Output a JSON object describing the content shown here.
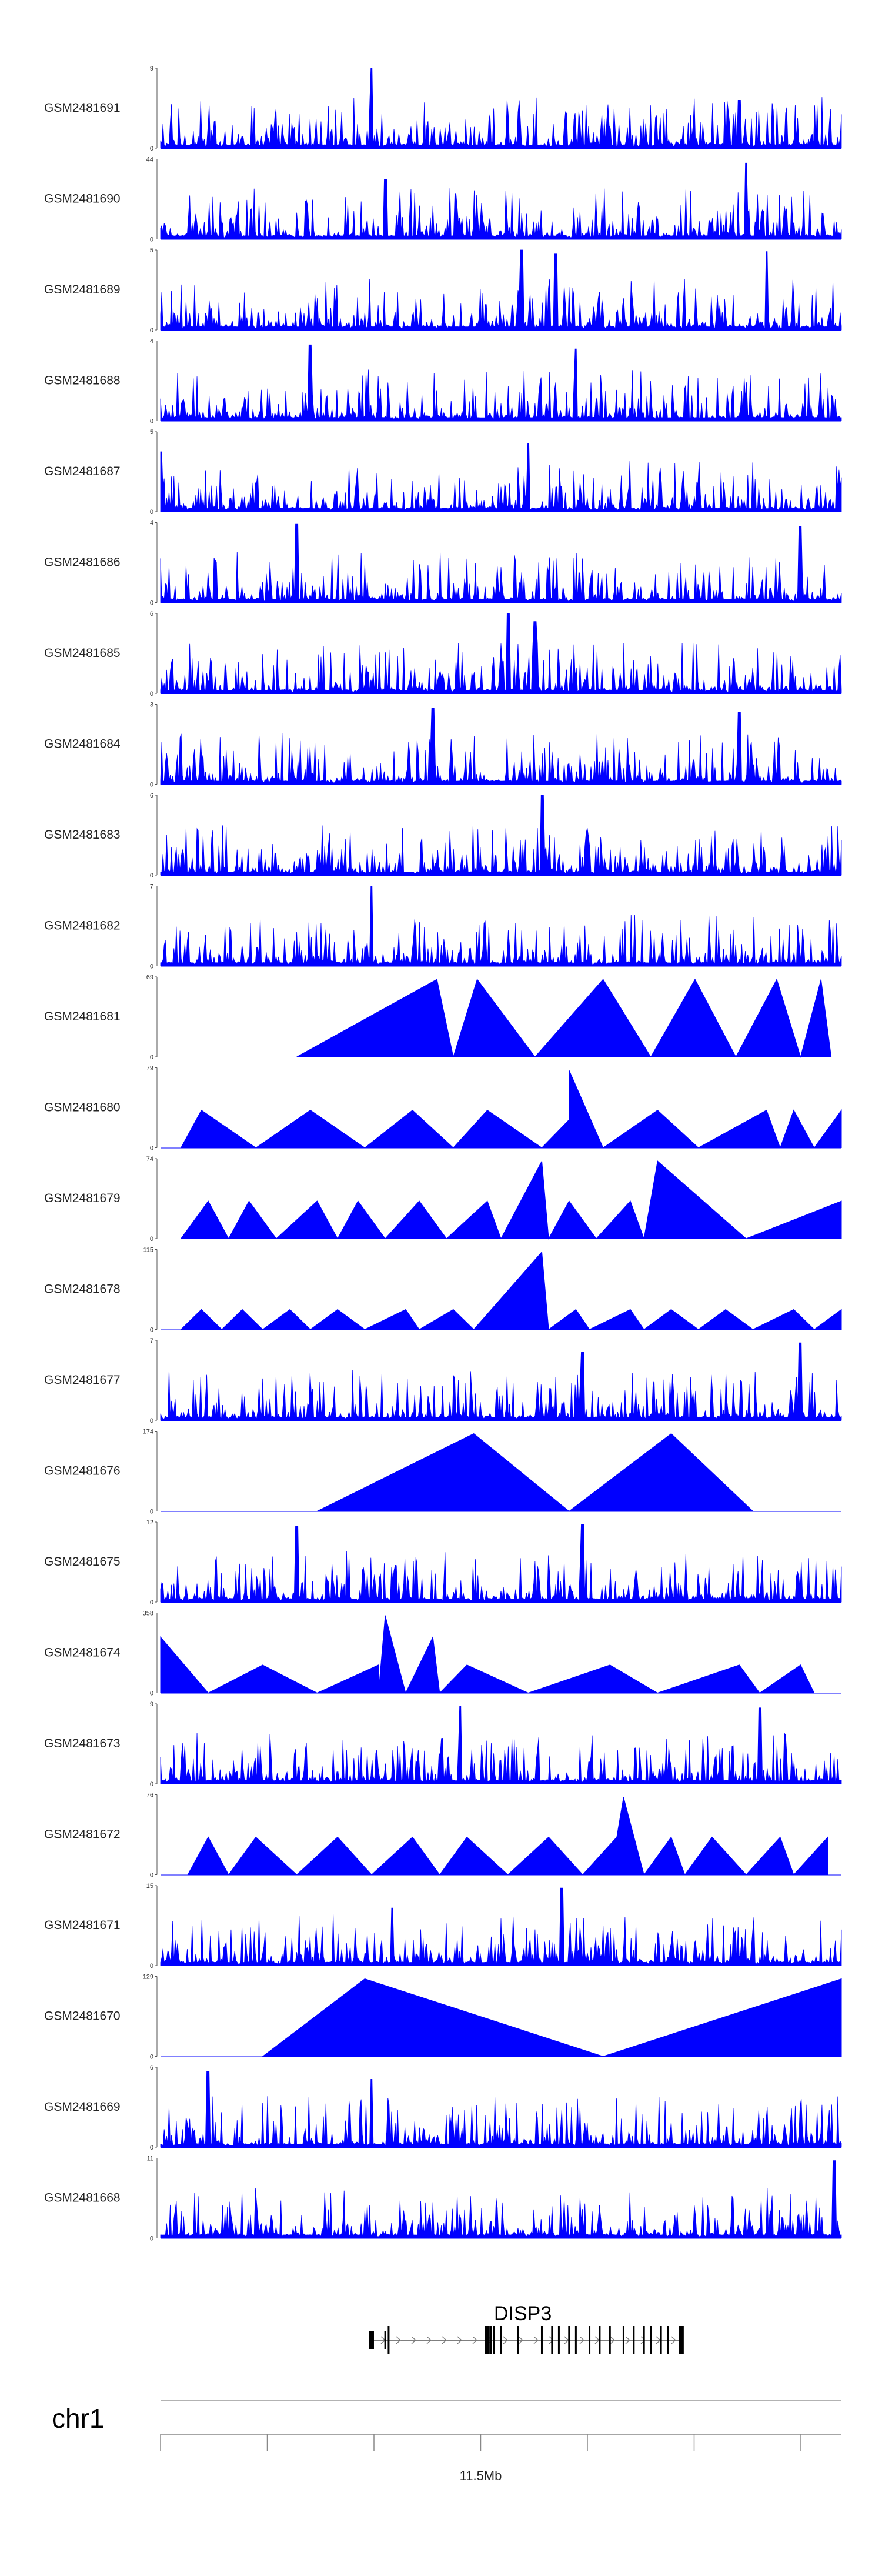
{
  "chart_data": {
    "type": "area",
    "title": "",
    "xlabel": "",
    "ylabel": "",
    "x_region_mb": [
      11.33,
      11.63
    ],
    "series_color": "#0000ff",
    "tracks": [
      {
        "name": "GSM2481691",
        "ymax": "9",
        "ymin": "0",
        "style": "dense",
        "peaks": [
          [
            0.31,
            1.0
          ],
          [
            0.85,
            0.6
          ]
        ]
      },
      {
        "name": "GSM2481690",
        "ymax": "44",
        "ymin": "0",
        "style": "triangles",
        "peaks": [
          [
            0.33,
            0.75
          ],
          [
            0.86,
            0.95
          ]
        ]
      },
      {
        "name": "GSM2481689",
        "ymax": "5",
        "ymin": "0",
        "style": "dense",
        "peaks": [
          [
            0.53,
            1.0
          ],
          [
            0.58,
            0.95
          ],
          [
            0.89,
            0.98
          ]
        ]
      },
      {
        "name": "GSM2481688",
        "ymax": "4",
        "ymin": "0",
        "style": "dense",
        "peaks": [
          [
            0.22,
            0.95
          ],
          [
            0.61,
            0.9
          ]
        ]
      },
      {
        "name": "GSM2481687",
        "ymax": "5",
        "ymin": "0",
        "style": "dense",
        "peaks": [
          [
            0.0,
            0.75
          ],
          [
            0.54,
            0.85
          ]
        ]
      },
      {
        "name": "GSM2481686",
        "ymax": "4",
        "ymin": "0",
        "style": "dense",
        "peaks": [
          [
            0.2,
            0.98
          ],
          [
            0.94,
            0.95
          ]
        ]
      },
      {
        "name": "GSM2481685",
        "ymax": "6",
        "ymin": "0",
        "style": "dense",
        "peaks": [
          [
            0.51,
            1.0
          ],
          [
            0.55,
            0.9
          ]
        ]
      },
      {
        "name": "GSM2481684",
        "ymax": "3",
        "ymin": "0",
        "style": "dense",
        "peaks": [
          [
            0.4,
            0.95
          ],
          [
            0.85,
            0.9
          ]
        ]
      },
      {
        "name": "GSM2481683",
        "ymax": "6",
        "ymin": "0",
        "style": "dense",
        "peaks": [
          [
            0.56,
            1.0
          ]
        ]
      },
      {
        "name": "GSM2481682",
        "ymax": "7",
        "ymin": "0",
        "style": "dense",
        "peaks": [
          [
            0.31,
            1.0
          ]
        ]
      },
      {
        "name": "GSM2481681",
        "ymax": "69",
        "ymin": "0",
        "style": "big",
        "peaks": [
          [
            0.2,
            0.0
          ],
          [
            0.406,
            0.97
          ],
          [
            0.43,
            0.0
          ],
          [
            0.465,
            0.97
          ],
          [
            0.55,
            0.0
          ],
          [
            0.65,
            0.97
          ],
          [
            0.72,
            0.0
          ],
          [
            0.785,
            0.97
          ],
          [
            0.845,
            0.0
          ],
          [
            0.905,
            0.97
          ],
          [
            0.94,
            0.0
          ],
          [
            0.97,
            0.97
          ],
          [
            0.985,
            0.0
          ]
        ]
      },
      {
        "name": "GSM2481680",
        "ymax": "79",
        "ymin": "0",
        "style": "big",
        "peaks": [
          [
            0.03,
            0.0
          ],
          [
            0.06,
            0.47
          ],
          [
            0.14,
            0.0
          ],
          [
            0.22,
            0.47
          ],
          [
            0.3,
            0.0
          ],
          [
            0.37,
            0.47
          ],
          [
            0.43,
            0.0
          ],
          [
            0.48,
            0.47
          ],
          [
            0.56,
            0.0
          ],
          [
            0.6,
            0.35
          ],
          [
            0.6,
            0.97
          ],
          [
            0.65,
            0.0
          ],
          [
            0.73,
            0.47
          ],
          [
            0.79,
            0.0
          ],
          [
            0.89,
            0.47
          ],
          [
            0.91,
            0.0
          ],
          [
            0.93,
            0.47
          ],
          [
            0.96,
            0.0
          ],
          [
            1.0,
            0.47
          ]
        ]
      },
      {
        "name": "GSM2481679",
        "ymax": "74",
        "ymin": "0",
        "style": "big",
        "peaks": [
          [
            0.03,
            0.0
          ],
          [
            0.07,
            0.47
          ],
          [
            0.1,
            0.0
          ],
          [
            0.13,
            0.47
          ],
          [
            0.17,
            0.0
          ],
          [
            0.23,
            0.47
          ],
          [
            0.26,
            0.0
          ],
          [
            0.29,
            0.47
          ],
          [
            0.33,
            0.0
          ],
          [
            0.38,
            0.47
          ],
          [
            0.42,
            0.0
          ],
          [
            0.48,
            0.47
          ],
          [
            0.5,
            0.0
          ],
          [
            0.56,
            0.97
          ],
          [
            0.57,
            0.0
          ],
          [
            0.6,
            0.47
          ],
          [
            0.64,
            0.0
          ],
          [
            0.69,
            0.47
          ],
          [
            0.71,
            0.0
          ],
          [
            0.73,
            0.97
          ],
          [
            0.86,
            0.0
          ],
          [
            1.0,
            0.47
          ]
        ]
      },
      {
        "name": "GSM2481678",
        "ymax": "115",
        "ymin": "0",
        "style": "big",
        "peaks": [
          [
            0.03,
            0.0
          ],
          [
            0.06,
            0.25
          ],
          [
            0.09,
            0.0
          ],
          [
            0.12,
            0.25
          ],
          [
            0.15,
            0.0
          ],
          [
            0.19,
            0.25
          ],
          [
            0.22,
            0.0
          ],
          [
            0.26,
            0.25
          ],
          [
            0.3,
            0.0
          ],
          [
            0.36,
            0.25
          ],
          [
            0.38,
            0.0
          ],
          [
            0.43,
            0.25
          ],
          [
            0.46,
            0.0
          ],
          [
            0.56,
            0.97
          ],
          [
            0.57,
            0.0
          ],
          [
            0.61,
            0.25
          ],
          [
            0.63,
            0.0
          ],
          [
            0.69,
            0.25
          ],
          [
            0.71,
            0.0
          ],
          [
            0.75,
            0.25
          ],
          [
            0.79,
            0.0
          ],
          [
            0.83,
            0.25
          ],
          [
            0.87,
            0.0
          ],
          [
            0.93,
            0.25
          ],
          [
            0.96,
            0.0
          ],
          [
            1.0,
            0.25
          ]
        ]
      },
      {
        "name": "GSM2481677",
        "ymax": "7",
        "ymin": "0",
        "style": "dense",
        "peaks": [
          [
            0.62,
            0.85
          ],
          [
            0.94,
            0.97
          ]
        ]
      },
      {
        "name": "GSM2481676",
        "ymax": "174",
        "ymin": "0",
        "style": "big",
        "peaks": [
          [
            0.23,
            0.0
          ],
          [
            0.46,
            0.97
          ],
          [
            0.6,
            0.0
          ],
          [
            0.75,
            0.97
          ],
          [
            0.87,
            0.0
          ]
        ]
      },
      {
        "name": "GSM2481675",
        "ymax": "12",
        "ymin": "0",
        "style": "dense",
        "peaks": [
          [
            0.2,
            0.95
          ],
          [
            0.62,
            0.97
          ]
        ]
      },
      {
        "name": "GSM2481674",
        "ymax": "358",
        "ymin": "0",
        "style": "big",
        "peaks": [
          [
            0.0,
            0.7
          ],
          [
            0.07,
            0.0
          ],
          [
            0.15,
            0.35
          ],
          [
            0.23,
            0.0
          ],
          [
            0.32,
            0.35
          ],
          [
            0.32,
            0.0
          ],
          [
            0.33,
            0.97
          ],
          [
            0.36,
            0.0
          ],
          [
            0.4,
            0.7
          ],
          [
            0.41,
            0.0
          ],
          [
            0.45,
            0.35
          ],
          [
            0.54,
            0.0
          ],
          [
            0.66,
            0.35
          ],
          [
            0.73,
            0.0
          ],
          [
            0.85,
            0.35
          ],
          [
            0.88,
            0.0
          ],
          [
            0.94,
            0.35
          ],
          [
            0.96,
            0.0
          ]
        ]
      },
      {
        "name": "GSM2481673",
        "ymax": "9",
        "ymin": "0",
        "style": "dense",
        "peaks": [
          [
            0.44,
            0.97
          ],
          [
            0.88,
            0.95
          ]
        ]
      },
      {
        "name": "GSM2481672",
        "ymax": "76",
        "ymin": "0",
        "style": "big",
        "peaks": [
          [
            0.04,
            0.0
          ],
          [
            0.07,
            0.47
          ],
          [
            0.1,
            0.0
          ],
          [
            0.14,
            0.47
          ],
          [
            0.2,
            0.0
          ],
          [
            0.26,
            0.47
          ],
          [
            0.31,
            0.0
          ],
          [
            0.37,
            0.47
          ],
          [
            0.41,
            0.0
          ],
          [
            0.45,
            0.47
          ],
          [
            0.51,
            0.0
          ],
          [
            0.57,
            0.47
          ],
          [
            0.62,
            0.0
          ],
          [
            0.67,
            0.47
          ],
          [
            0.68,
            0.97
          ],
          [
            0.71,
            0.0
          ],
          [
            0.75,
            0.47
          ],
          [
            0.77,
            0.0
          ],
          [
            0.81,
            0.47
          ],
          [
            0.86,
            0.0
          ],
          [
            0.91,
            0.47
          ],
          [
            0.93,
            0.0
          ],
          [
            0.98,
            0.47
          ]
        ]
      },
      {
        "name": "GSM2481671",
        "ymax": "15",
        "ymin": "0",
        "style": "dense",
        "peaks": [
          [
            0.34,
            0.72
          ],
          [
            0.59,
            0.97
          ]
        ]
      },
      {
        "name": "GSM2481670",
        "ymax": "129",
        "ymin": "0",
        "style": "big",
        "peaks": [
          [
            0.15,
            0.0
          ],
          [
            0.3,
            0.97
          ],
          [
            0.65,
            0.0
          ],
          [
            1.0,
            0.97
          ]
        ]
      },
      {
        "name": "GSM2481669",
        "ymax": "6",
        "ymin": "0",
        "style": "dense",
        "peaks": [
          [
            0.07,
            0.95
          ],
          [
            0.31,
            0.85
          ]
        ]
      },
      {
        "name": "GSM2481668",
        "ymax": "11",
        "ymin": "0",
        "style": "dense",
        "peaks": [
          [
            0.99,
            0.97
          ]
        ]
      }
    ],
    "gene": {
      "name": "DISP3",
      "start_frac": 0.31,
      "end_frac": 0.765,
      "exons": [
        0.31,
        0.33,
        0.335,
        0.48,
        0.485,
        0.49,
        0.5,
        0.525,
        0.56,
        0.575,
        0.585,
        0.6,
        0.61,
        0.63,
        0.645,
        0.66,
        0.68,
        0.695,
        0.71,
        0.72,
        0.735,
        0.745,
        0.765
      ]
    },
    "chromosome": "chr1",
    "axis": {
      "tick_count": 7,
      "labels": [
        {
          "value": "11.5Mb",
          "tick_index": 3
        }
      ]
    }
  }
}
